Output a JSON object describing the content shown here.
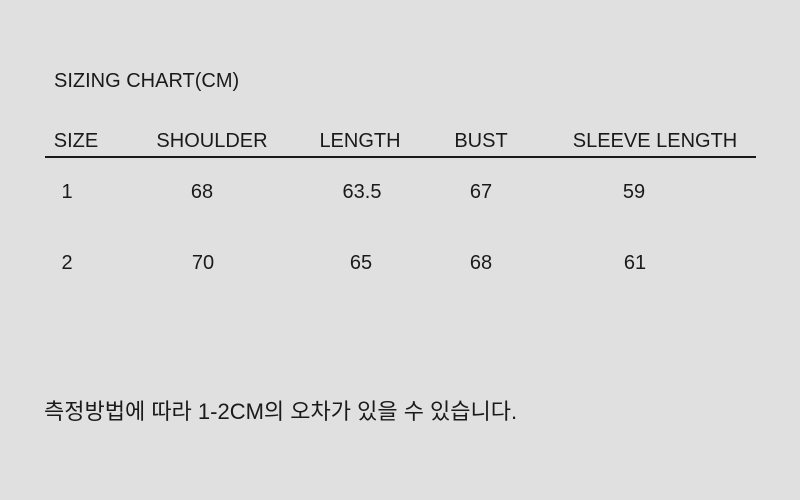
{
  "title": "SIZING CHART(CM)",
  "table": {
    "headers": [
      "SIZE",
      "SHOULDER",
      "LENGTH",
      "BUST",
      "SLEEVE LENGTH"
    ],
    "rows": [
      [
        "1",
        "68",
        "63.5",
        "67",
        "59"
      ],
      [
        "2",
        "70",
        "65",
        "68",
        "61"
      ]
    ]
  },
  "note": "측정방법에 따라 1-2CM의 오차가 있을 수 있습니다.",
  "colors": {
    "background": "#e0e0e0",
    "text": "#1a1a1a"
  }
}
